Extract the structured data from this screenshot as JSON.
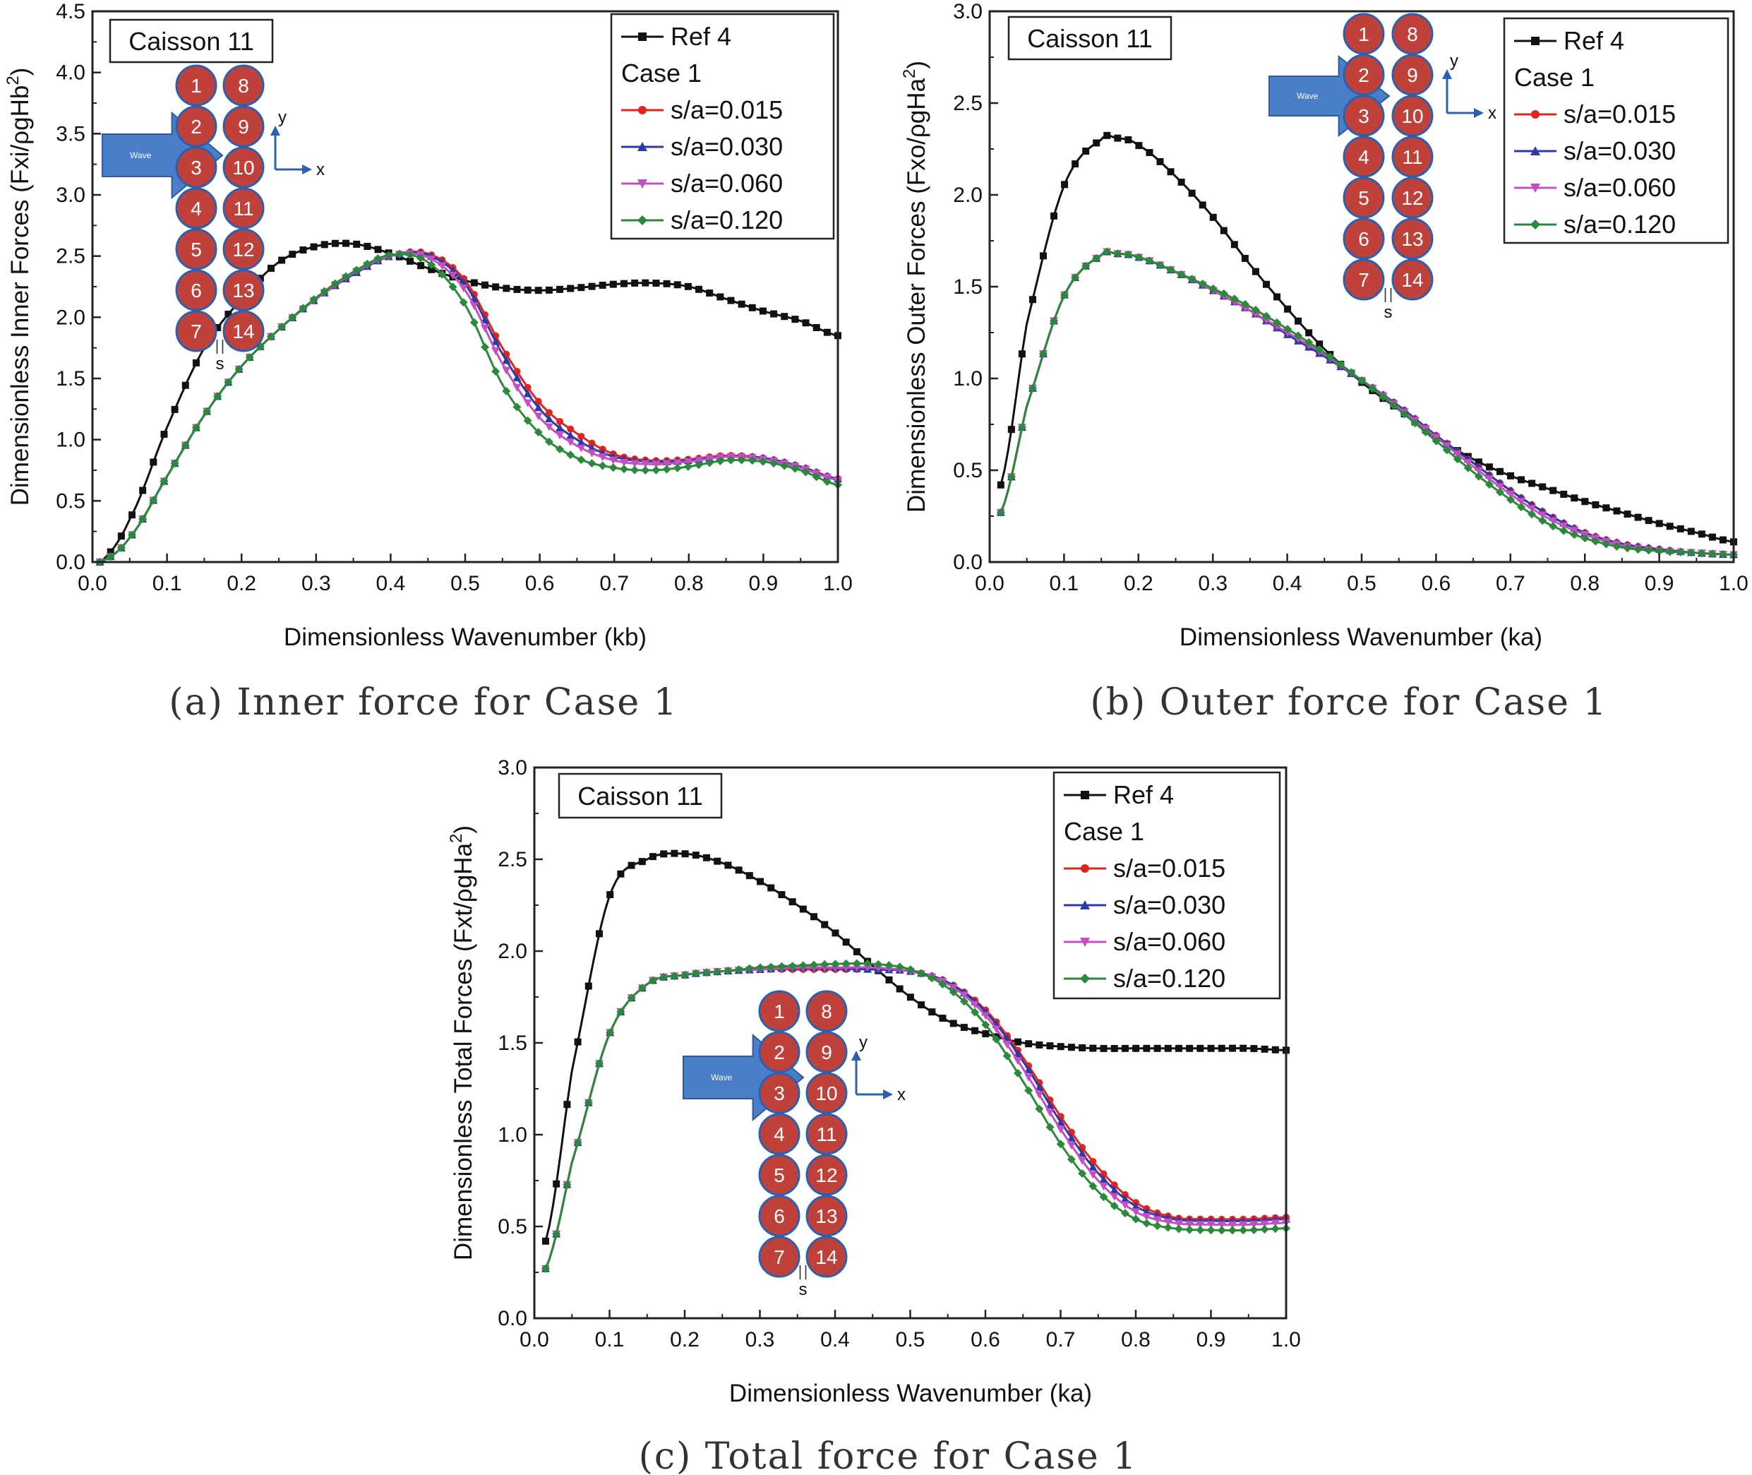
{
  "colors": {
    "ref": "#111111",
    "s015": "#e3241c",
    "s030": "#2b3aa8",
    "s060": "#c44ec4",
    "s120": "#2a8a3a",
    "caisson_fill": "#c0403a",
    "caisson_stroke": "#2b5fb0",
    "arrow_fill": "#4a7ec8",
    "axis_arrow": "#2b5fb0"
  },
  "diagram": {
    "caisson_box_label": "Caisson 11",
    "left_column": [
      "1",
      "2",
      "3",
      "4",
      "5",
      "6",
      "7"
    ],
    "right_column": [
      "8",
      "9",
      "10",
      "11",
      "12",
      "13",
      "14"
    ],
    "wave_label": "Wave",
    "x_axis": "x",
    "y_axis": "y",
    "gap_label": "s"
  },
  "legend": {
    "ref": "Ref 4",
    "case": "Case 1",
    "s015": "s/a=0.015",
    "s030": "s/a=0.030",
    "s060": "s/a=0.060",
    "s120": "s/a=0.120"
  },
  "chart_data": [
    {
      "type": "line",
      "caption": "(a) Inner force for Case 1",
      "xlabel": "Dimensionless Wavenumber (kb)",
      "ylabel_main": "Dimensionless Inner Forces (Fxi/",
      "ylabel_rho": "ρ",
      "ylabel_rest": "gHb",
      "ylabel_sup": "2",
      "ylabel_close": ")",
      "xlim": [
        0,
        1.0
      ],
      "ylim": [
        0,
        4.5
      ],
      "xticks": [
        "0.0",
        "0.1",
        "0.2",
        "0.3",
        "0.4",
        "0.5",
        "0.6",
        "0.7",
        "0.8",
        "0.9",
        "1.0"
      ],
      "yticks": [
        "0.0",
        "0.5",
        "1.0",
        "1.5",
        "2.0",
        "2.5",
        "3.0",
        "3.5",
        "4.0",
        "4.5"
      ],
      "x": [
        0.01,
        0.05,
        0.1,
        0.15,
        0.2,
        0.25,
        0.3,
        0.35,
        0.4,
        0.45,
        0.5,
        0.55,
        0.6,
        0.65,
        0.7,
        0.75,
        0.8,
        0.85,
        0.9,
        0.95,
        1.0
      ],
      "series": [
        {
          "key": "ref",
          "name": "Ref 4",
          "values": [
            0.0,
            0.35,
            1.1,
            1.75,
            2.15,
            2.45,
            2.58,
            2.6,
            2.52,
            2.4,
            2.3,
            2.24,
            2.22,
            2.24,
            2.27,
            2.28,
            2.25,
            2.15,
            2.05,
            1.97,
            1.85
          ]
        },
        {
          "key": "s015",
          "name": "s/a=0.015",
          "values": [
            0.0,
            0.2,
            0.7,
            1.2,
            1.6,
            1.9,
            2.15,
            2.35,
            2.5,
            2.52,
            2.3,
            1.75,
            1.3,
            1.05,
            0.88,
            0.83,
            0.84,
            0.87,
            0.85,
            0.78,
            0.68
          ]
        },
        {
          "key": "s030",
          "name": "s/a=0.030",
          "values": [
            0.0,
            0.2,
            0.7,
            1.2,
            1.6,
            1.9,
            2.15,
            2.35,
            2.5,
            2.51,
            2.27,
            1.7,
            1.25,
            1.0,
            0.86,
            0.82,
            0.83,
            0.86,
            0.85,
            0.78,
            0.68
          ]
        },
        {
          "key": "s060",
          "name": "s/a=0.060",
          "values": [
            0.0,
            0.2,
            0.7,
            1.2,
            1.6,
            1.9,
            2.15,
            2.36,
            2.5,
            2.49,
            2.22,
            1.62,
            1.18,
            0.95,
            0.83,
            0.8,
            0.82,
            0.86,
            0.84,
            0.77,
            0.67
          ]
        },
        {
          "key": "s120",
          "name": "s/a=0.120",
          "values": [
            0.0,
            0.2,
            0.7,
            1.2,
            1.6,
            1.9,
            2.16,
            2.37,
            2.51,
            2.45,
            2.1,
            1.45,
            1.05,
            0.85,
            0.77,
            0.75,
            0.78,
            0.83,
            0.82,
            0.75,
            0.63
          ]
        }
      ]
    },
    {
      "type": "line",
      "caption": "(b) Outer force for Case 1",
      "xlabel": "Dimensionless Wavenumber (ka)",
      "ylabel_main": "Dimensionless Outer Forces (Fxo/",
      "ylabel_rho": "ρ",
      "ylabel_rest": "gHa",
      "ylabel_sup": "2",
      "ylabel_close": ")",
      "xlim": [
        0,
        1.0
      ],
      "ylim": [
        0,
        3.0
      ],
      "xticks": [
        "0.0",
        "0.1",
        "0.2",
        "0.3",
        "0.4",
        "0.5",
        "0.6",
        "0.7",
        "0.8",
        "0.9",
        "1.0"
      ],
      "yticks": [
        "0.0",
        "0.5",
        "1.0",
        "1.5",
        "2.0",
        "2.5",
        "3.0"
      ],
      "x": [
        0.015,
        0.05,
        0.1,
        0.15,
        0.17,
        0.2,
        0.25,
        0.3,
        0.35,
        0.4,
        0.45,
        0.5,
        0.55,
        0.6,
        0.65,
        0.7,
        0.75,
        0.8,
        0.85,
        0.9,
        0.95,
        1.0
      ],
      "series": [
        {
          "key": "ref",
          "name": "Ref 4",
          "values": [
            0.42,
            1.3,
            2.05,
            2.3,
            2.31,
            2.27,
            2.1,
            1.88,
            1.62,
            1.38,
            1.16,
            0.98,
            0.83,
            0.68,
            0.56,
            0.47,
            0.4,
            0.33,
            0.27,
            0.21,
            0.16,
            0.11
          ]
        },
        {
          "key": "s015",
          "name": "s/a=0.015",
          "values": [
            0.27,
            0.85,
            1.45,
            1.67,
            1.68,
            1.66,
            1.58,
            1.48,
            1.37,
            1.24,
            1.12,
            0.99,
            0.85,
            0.69,
            0.54,
            0.39,
            0.26,
            0.16,
            0.1,
            0.07,
            0.05,
            0.04
          ]
        },
        {
          "key": "s030",
          "name": "s/a=0.030",
          "values": [
            0.27,
            0.85,
            1.45,
            1.67,
            1.68,
            1.66,
            1.58,
            1.48,
            1.37,
            1.24,
            1.12,
            0.99,
            0.85,
            0.69,
            0.54,
            0.39,
            0.26,
            0.16,
            0.1,
            0.07,
            0.05,
            0.04
          ]
        },
        {
          "key": "s060",
          "name": "s/a=0.060",
          "values": [
            0.27,
            0.85,
            1.45,
            1.67,
            1.68,
            1.66,
            1.58,
            1.48,
            1.37,
            1.25,
            1.13,
            0.99,
            0.84,
            0.68,
            0.52,
            0.37,
            0.24,
            0.15,
            0.09,
            0.06,
            0.05,
            0.04
          ]
        },
        {
          "key": "s120",
          "name": "s/a=0.120",
          "values": [
            0.27,
            0.85,
            1.45,
            1.67,
            1.68,
            1.66,
            1.58,
            1.49,
            1.39,
            1.27,
            1.14,
            0.99,
            0.83,
            0.66,
            0.49,
            0.34,
            0.21,
            0.13,
            0.08,
            0.06,
            0.05,
            0.04
          ]
        }
      ]
    },
    {
      "type": "line",
      "caption": "(c) Total force for Case 1",
      "xlabel": "Dimensionless Wavenumber (ka)",
      "ylabel_main": "Dimensionless Total Forces (Fxt/",
      "ylabel_rho": "ρ",
      "ylabel_rest": "gHa",
      "ylabel_sup": "2",
      "ylabel_close": ")",
      "xlim": [
        0,
        1.0
      ],
      "ylim": [
        0,
        3.0
      ],
      "xticks": [
        "0.0",
        "0.1",
        "0.2",
        "0.3",
        "0.4",
        "0.5",
        "0.6",
        "0.7",
        "0.8",
        "0.9",
        "1.0"
      ],
      "yticks": [
        "0.0",
        "0.5",
        "1.0",
        "1.5",
        "2.0",
        "2.5",
        "3.0"
      ],
      "x": [
        0.015,
        0.05,
        0.1,
        0.15,
        0.2,
        0.25,
        0.3,
        0.35,
        0.4,
        0.45,
        0.5,
        0.55,
        0.6,
        0.65,
        0.7,
        0.75,
        0.8,
        0.85,
        0.9,
        0.95,
        1.0
      ],
      "series": [
        {
          "key": "ref",
          "name": "Ref 4",
          "values": [
            0.42,
            1.35,
            2.3,
            2.5,
            2.53,
            2.48,
            2.38,
            2.25,
            2.1,
            1.92,
            1.75,
            1.62,
            1.55,
            1.5,
            1.48,
            1.47,
            1.47,
            1.47,
            1.47,
            1.47,
            1.46
          ]
        },
        {
          "key": "s015",
          "name": "s/a=0.015",
          "values": [
            0.27,
            0.85,
            1.55,
            1.82,
            1.87,
            1.89,
            1.9,
            1.9,
            1.9,
            1.9,
            1.89,
            1.83,
            1.68,
            1.42,
            1.1,
            0.82,
            0.63,
            0.55,
            0.54,
            0.54,
            0.55
          ]
        },
        {
          "key": "s030",
          "name": "s/a=0.030",
          "values": [
            0.27,
            0.85,
            1.55,
            1.82,
            1.87,
            1.89,
            1.9,
            1.91,
            1.91,
            1.9,
            1.89,
            1.83,
            1.67,
            1.4,
            1.07,
            0.79,
            0.61,
            0.54,
            0.53,
            0.53,
            0.54
          ]
        },
        {
          "key": "s060",
          "name": "s/a=0.060",
          "values": [
            0.27,
            0.85,
            1.55,
            1.82,
            1.87,
            1.89,
            1.9,
            1.91,
            1.91,
            1.91,
            1.89,
            1.82,
            1.65,
            1.36,
            1.03,
            0.75,
            0.58,
            0.52,
            0.51,
            0.51,
            0.52
          ]
        },
        {
          "key": "s120",
          "name": "s/a=0.120",
          "values": [
            0.27,
            0.85,
            1.55,
            1.82,
            1.87,
            1.89,
            1.91,
            1.92,
            1.93,
            1.93,
            1.9,
            1.8,
            1.6,
            1.29,
            0.95,
            0.69,
            0.54,
            0.49,
            0.48,
            0.48,
            0.49
          ]
        }
      ]
    }
  ]
}
